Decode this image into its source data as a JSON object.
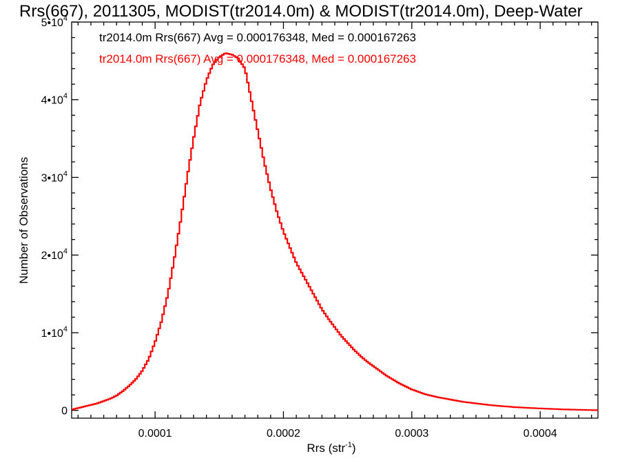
{
  "chart_data": {
    "type": "line",
    "title": "Rrs(667), 2011305, MODIST(tr2014.0m) & MODIST(tr2014.0m), Deep-Water",
    "xlabel": "Rrs (str",
    "xlabel_sup": "-1",
    "xlabel_close": ")",
    "ylabel": "Number of Observations",
    "xlim": [
      3.5e-05,
      0.000445
    ],
    "ylim": [
      -1000,
      50000
    ],
    "xticks": [
      {
        "value": 0.0001,
        "label": "0.0001"
      },
      {
        "value": 0.0002,
        "label": "0.0002"
      },
      {
        "value": 0.0003,
        "label": "0.0003"
      },
      {
        "value": 0.0004,
        "label": "0.0004"
      }
    ],
    "yticks": [
      {
        "value": 0,
        "label": "0",
        "sup": ""
      },
      {
        "value": 10000,
        "label": "1•10",
        "sup": "4"
      },
      {
        "value": 20000,
        "label": "2•10",
        "sup": "4"
      },
      {
        "value": 30000,
        "label": "3•10",
        "sup": "4"
      },
      {
        "value": 40000,
        "label": "4•10",
        "sup": "4"
      },
      {
        "value": 50000,
        "label": "5•10",
        "sup": "4"
      }
    ],
    "annotations": [
      {
        "text": "tr2014.0m Rrs(667) Avg = 0.000176348, Med = 0.000167263",
        "color": "#000000"
      },
      {
        "text": "tr2014.0m Rrs(667) Avg = 0.000176348, Med = 0.000167263",
        "color": "#ff0000"
      }
    ],
    "series": [
      {
        "color": "#ff0000",
        "style": "step",
        "x": [
          3.5e-05,
          4e-05,
          4.5e-05,
          5e-05,
          5.5e-05,
          6e-05,
          6.5e-05,
          7e-05,
          7.5e-05,
          8e-05,
          8.5e-05,
          9e-05,
          9.5e-05,
          0.0001,
          0.000105,
          0.00011,
          0.000115,
          0.00012,
          0.000125,
          0.00013,
          0.000135,
          0.00014,
          0.000145,
          0.00015,
          0.000155,
          0.00016,
          0.000165,
          0.00017,
          0.000175,
          0.00018,
          0.000185,
          0.00019,
          0.000195,
          0.0002,
          0.000205,
          0.00021,
          0.000215,
          0.00022,
          0.000225,
          0.00023,
          0.000235,
          0.00024,
          0.000245,
          0.00025,
          0.000255,
          0.00026,
          0.000265,
          0.00027,
          0.000275,
          0.00028,
          0.000285,
          0.00029,
          0.000295,
          0.0003,
          0.000305,
          0.00031,
          0.00032,
          0.00033,
          0.00034,
          0.00035,
          0.00036,
          0.00037,
          0.00038,
          0.00039,
          0.0004,
          0.00041,
          0.00042,
          0.00043,
          0.00044,
          0.000445
        ],
        "y": [
          100,
          300,
          500,
          700,
          900,
          1200,
          1500,
          1900,
          2500,
          3200,
          4000,
          5100,
          6600,
          8800,
          11500,
          15000,
          19500,
          24500,
          30000,
          35000,
          39500,
          42500,
          44500,
          45500,
          46000,
          45800,
          45300,
          44000,
          40000,
          36000,
          32000,
          28500,
          25500,
          23000,
          21000,
          19000,
          17500,
          16000,
          14500,
          13000,
          11800,
          10700,
          9600,
          8700,
          7800,
          7000,
          6300,
          5700,
          5100,
          4500,
          4000,
          3500,
          3100,
          2700,
          2400,
          2100,
          1700,
          1400,
          1100,
          900,
          700,
          550,
          420,
          330,
          250,
          180,
          120,
          80,
          40,
          20
        ]
      }
    ]
  }
}
